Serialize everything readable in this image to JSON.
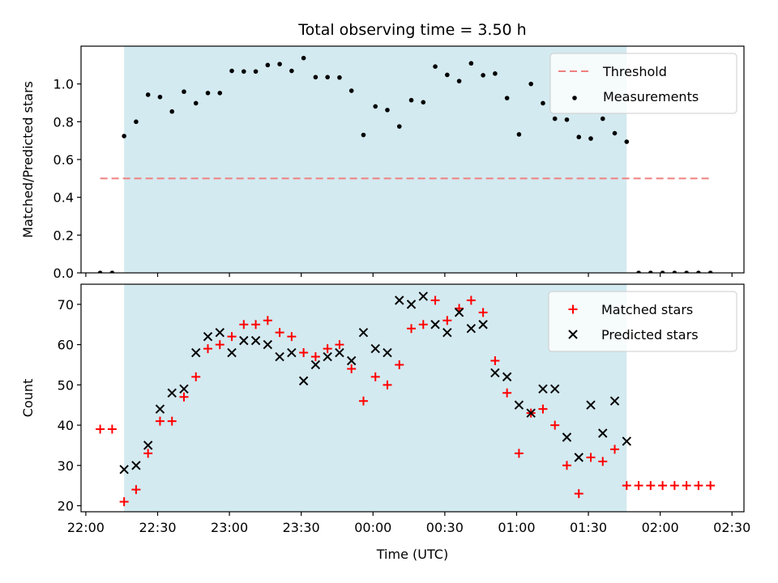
{
  "chart_data": [
    {
      "type": "scatter",
      "title": "Total observing time = 3.50 h",
      "ylabel": "Matched/Predicted stars",
      "xlabel": "",
      "xlim": [
        "21:58",
        "02:35"
      ],
      "ylim": [
        0,
        1.2
      ],
      "yticks": [
        "0.0",
        "0.2",
        "0.4",
        "0.6",
        "0.8",
        "1.0"
      ],
      "ytick_values": [
        0,
        0.2,
        0.4,
        0.6,
        0.8,
        1.0
      ],
      "grid": false,
      "legend": "top-right",
      "shaded_span": {
        "start": "22:16",
        "end": "01:46",
        "color": "#d3eaf0"
      },
      "threshold": {
        "name": "Threshold",
        "value": 0.5,
        "x_start": "22:06",
        "x_end": "02:21",
        "color": "#f08080",
        "style": "dashed"
      },
      "series": [
        {
          "name": "Measurements",
          "marker": "dot",
          "color": "#000000",
          "x": [
            "22:06",
            "22:11",
            "22:16",
            "22:21",
            "22:26",
            "22:31",
            "22:36",
            "22:41",
            "22:46",
            "22:51",
            "22:56",
            "23:01",
            "23:06",
            "23:11",
            "23:16",
            "23:21",
            "23:26",
            "23:31",
            "23:36",
            "23:41",
            "23:46",
            "23:51",
            "23:56",
            "00:01",
            "00:06",
            "00:11",
            "00:16",
            "00:21",
            "00:26",
            "00:31",
            "00:36",
            "00:41",
            "00:46",
            "00:51",
            "00:56",
            "01:01",
            "01:06",
            "01:11",
            "01:16",
            "01:21",
            "01:26",
            "01:31",
            "01:36",
            "01:41",
            "01:46",
            "01:51",
            "01:56",
            "02:01",
            "02:06",
            "02:11",
            "02:16",
            "02:21"
          ],
          "y": [
            0,
            0,
            0.724,
            0.8,
            0.943,
            0.931,
            0.854,
            0.959,
            0.898,
            0.952,
            0.952,
            1.069,
            1.066,
            1.066,
            1.1,
            1.105,
            1.069,
            1.137,
            1.036,
            1.036,
            1.034,
            0.964,
            0.73,
            0.881,
            0.862,
            0.775,
            0.914,
            0.903,
            1.092,
            1.048,
            1.015,
            1.109,
            1.046,
            1.055,
            0.925,
            0.733,
            1.0,
            0.898,
            0.816,
            0.811,
            0.719,
            0.711,
            0.816,
            0.739,
            0.694,
            0,
            0,
            0,
            0,
            0,
            0,
            0
          ]
        }
      ]
    },
    {
      "type": "scatter",
      "title": "",
      "ylabel": "Count",
      "xlabel": "Time (UTC)",
      "xlim": [
        "21:58",
        "02:35"
      ],
      "ylim": [
        18.5,
        75
      ],
      "yticks": [
        "20",
        "30",
        "40",
        "50",
        "60",
        "70"
      ],
      "ytick_values": [
        20,
        30,
        40,
        50,
        60,
        70
      ],
      "xticks": [
        "22:00",
        "22:30",
        "23:00",
        "23:30",
        "00:00",
        "00:30",
        "01:00",
        "01:30",
        "02:00",
        "02:30"
      ],
      "grid": false,
      "legend": "top-right",
      "shaded_span": {
        "start": "22:16",
        "end": "01:46",
        "color": "#d3eaf0"
      },
      "series": [
        {
          "name": "Matched stars",
          "marker": "plus",
          "color": "#ff0000",
          "x": [
            "22:06",
            "22:11",
            "22:16",
            "22:21",
            "22:26",
            "22:31",
            "22:36",
            "22:41",
            "22:46",
            "22:51",
            "22:56",
            "23:01",
            "23:06",
            "23:11",
            "23:16",
            "23:21",
            "23:26",
            "23:31",
            "23:36",
            "23:41",
            "23:46",
            "23:51",
            "23:56",
            "00:01",
            "00:06",
            "00:11",
            "00:16",
            "00:21",
            "00:26",
            "00:31",
            "00:36",
            "00:41",
            "00:46",
            "00:51",
            "00:56",
            "01:01",
            "01:06",
            "01:11",
            "01:16",
            "01:21",
            "01:26",
            "01:31",
            "01:36",
            "01:41",
            "01:46",
            "01:51",
            "01:56",
            "02:01",
            "02:06",
            "02:11",
            "02:16",
            "02:21"
          ],
          "y": [
            39,
            39,
            21,
            24,
            33,
            41,
            41,
            47,
            52,
            59,
            60,
            62,
            65,
            65,
            66,
            63,
            62,
            58,
            57,
            59,
            60,
            54,
            46,
            52,
            50,
            55,
            64,
            65,
            71,
            66,
            69,
            71,
            68,
            56,
            48,
            33,
            43,
            44,
            40,
            30,
            23,
            32,
            31,
            34,
            25,
            25,
            25,
            25,
            25,
            25,
            25,
            25
          ]
        },
        {
          "name": "Predicted stars",
          "marker": "x",
          "color": "#000000",
          "x": [
            "22:16",
            "22:21",
            "22:26",
            "22:31",
            "22:36",
            "22:41",
            "22:46",
            "22:51",
            "22:56",
            "23:01",
            "23:06",
            "23:11",
            "23:16",
            "23:21",
            "23:26",
            "23:31",
            "23:36",
            "23:41",
            "23:46",
            "23:51",
            "23:56",
            "00:01",
            "00:06",
            "00:11",
            "00:16",
            "00:21",
            "00:26",
            "00:31",
            "00:36",
            "00:41",
            "00:46",
            "00:51",
            "00:56",
            "01:01",
            "01:06",
            "01:11",
            "01:16",
            "01:21",
            "01:26",
            "01:31",
            "01:36",
            "01:41",
            "01:46"
          ],
          "y": [
            29,
            30,
            35,
            44,
            48,
            49,
            58,
            62,
            63,
            58,
            61,
            61,
            60,
            57,
            58,
            51,
            55,
            57,
            58,
            56,
            63,
            59,
            58,
            71,
            70,
            72,
            65,
            63,
            68,
            64,
            65,
            53,
            52,
            45,
            43,
            49,
            49,
            37,
            32,
            45,
            38,
            46,
            36
          ]
        }
      ]
    }
  ]
}
